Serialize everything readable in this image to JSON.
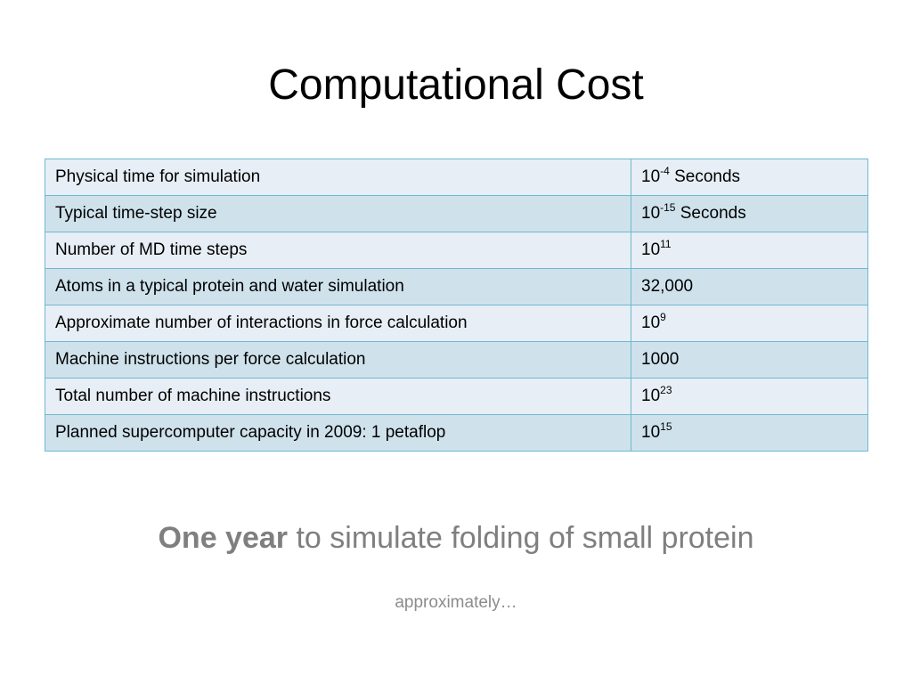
{
  "slide": {
    "title": "Computational Cost",
    "table": {
      "rows": [
        {
          "label": "Physical time for simulation",
          "base": "10",
          "exp": "-4",
          "suffix": " Seconds"
        },
        {
          "label": "Typical time-step size",
          "base": "10",
          "exp": "-15",
          "suffix": " Seconds"
        },
        {
          "label": "Number of MD time steps",
          "base": "10",
          "exp": "11",
          "suffix": ""
        },
        {
          "label": "Atoms in a typical protein and water simulation",
          "base": "32,000",
          "exp": "",
          "suffix": ""
        },
        {
          "label": "Approximate number of interactions in force calculation",
          "base": "10",
          "exp": "9",
          "suffix": ""
        },
        {
          "label": "Machine instructions per force calculation",
          "base": "1000",
          "exp": "",
          "suffix": ""
        },
        {
          "label": "Total number of machine instructions",
          "base": "10",
          "exp": "23",
          "suffix": ""
        },
        {
          "label": "Planned supercomputer capacity in 2009: 1 petaflop",
          "base": "10",
          "exp": "15",
          "suffix": ""
        }
      ]
    },
    "conclusion": {
      "bold": "One year",
      "rest": " to simulate folding of small protein"
    },
    "note": "approximately…"
  }
}
